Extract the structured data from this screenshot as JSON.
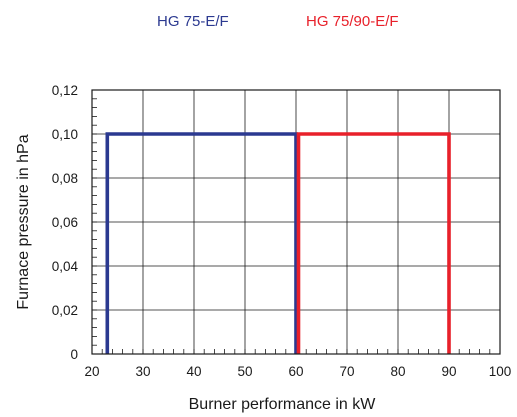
{
  "chart_data": {
    "type": "line",
    "xlabel": "Burner performance in kW",
    "ylabel": "Furnace pressure in hPa",
    "xlim": [
      20,
      100
    ],
    "ylim": [
      0,
      0.12
    ],
    "x_ticks": [
      "20",
      "30",
      "40",
      "50",
      "60",
      "70",
      "80",
      "90",
      "100"
    ],
    "y_ticks": [
      "0",
      "0,02",
      "0,04",
      "0,06",
      "0,08",
      "0,10",
      "0,12"
    ],
    "grid": true,
    "legend_position": "top",
    "series": [
      {
        "name": "HG 75-E/F",
        "color": "#2b3990",
        "points": [
          [
            23,
            0
          ],
          [
            23,
            0.1
          ],
          [
            60,
            0.1
          ],
          [
            60,
            0
          ]
        ]
      },
      {
        "name": "HG 75/90-E/F",
        "color": "#e8202a",
        "points": [
          [
            60.5,
            0
          ],
          [
            60.5,
            0.1
          ],
          [
            90,
            0.1
          ],
          [
            90,
            0
          ]
        ]
      }
    ]
  }
}
